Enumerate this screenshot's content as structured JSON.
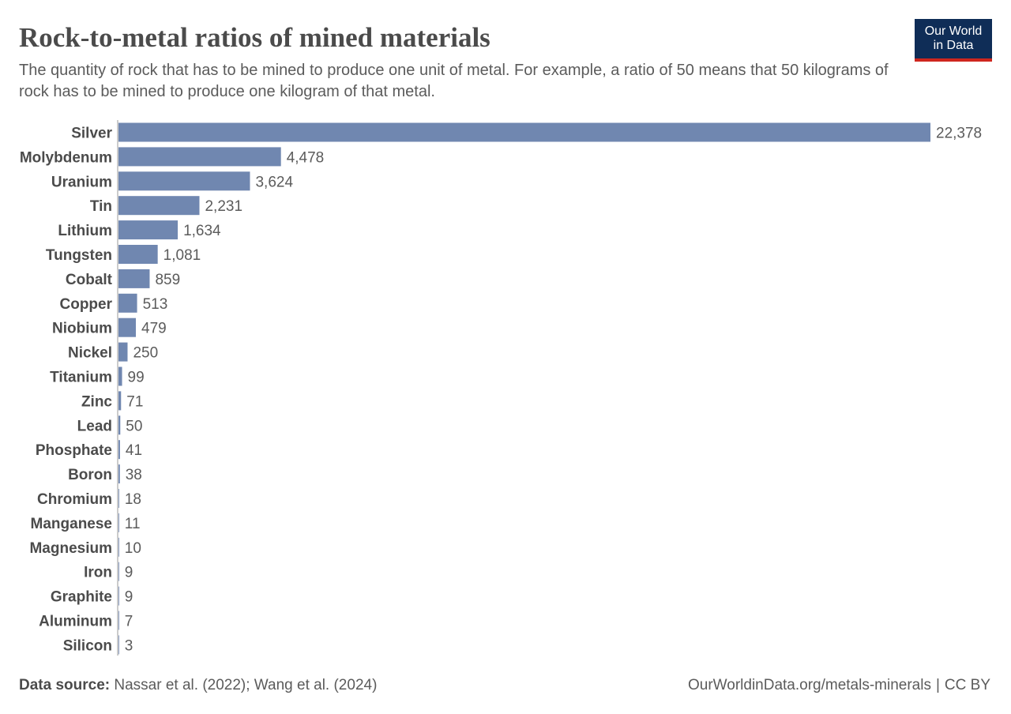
{
  "header": {
    "title": "Rock-to-metal ratios of mined materials",
    "subtitle": "The quantity of rock that has to be mined to produce one unit of metal. For example, a ratio of 50 means that 50 kilograms of rock has to be mined to produce one kilogram of that metal.",
    "logo_line1": "Our World",
    "logo_line2": "in Data"
  },
  "footer": {
    "source_label": "Data source:",
    "source_text": "Nassar et al. (2022); Wang et al. (2024)",
    "url": "OurWorldinData.org/metals-minerals",
    "license_sep": "|",
    "license": "CC BY"
  },
  "colors": {
    "bar": "#7087b0",
    "text_dark": "#4b4b4b",
    "text_light": "#5b5b5b",
    "logo_bg": "#0f2d57",
    "logo_accent": "#ce261e"
  },
  "chart_data": {
    "type": "bar",
    "orientation": "horizontal",
    "title": "Rock-to-metal ratios of mined materials",
    "xlabel": "",
    "ylabel": "",
    "xlim": [
      0,
      22378
    ],
    "grid": false,
    "categories": [
      "Silver",
      "Molybdenum",
      "Uranium",
      "Tin",
      "Lithium",
      "Tungsten",
      "Cobalt",
      "Copper",
      "Niobium",
      "Nickel",
      "Titanium",
      "Zinc",
      "Lead",
      "Phosphate",
      "Boron",
      "Chromium",
      "Manganese",
      "Magnesium",
      "Iron",
      "Graphite",
      "Aluminum",
      "Silicon"
    ],
    "values": [
      22378,
      4478,
      3624,
      2231,
      1634,
      1081,
      859,
      513,
      479,
      250,
      99,
      71,
      50,
      41,
      38,
      18,
      11,
      10,
      9,
      9,
      7,
      3
    ],
    "value_labels": [
      "22,378",
      "4,478",
      "3,624",
      "2,231",
      "1,634",
      "1,081",
      "859",
      "513",
      "479",
      "250",
      "99",
      "71",
      "50",
      "41",
      "38",
      "18",
      "11",
      "10",
      "9",
      "9",
      "7",
      "3"
    ]
  }
}
